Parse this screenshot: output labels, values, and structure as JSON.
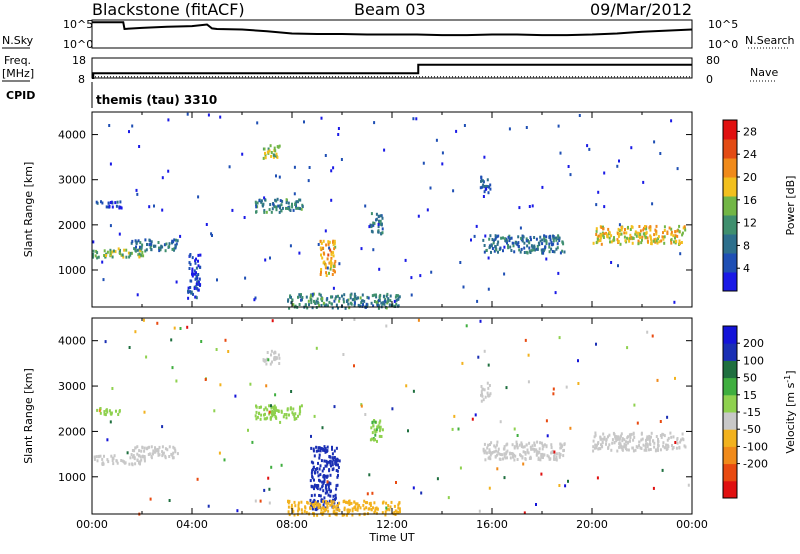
{
  "header": {
    "site": "Blackstone (fitACF)",
    "beam": "Beam 03",
    "date": "09/Mar/2012"
  },
  "panels": {
    "nsky_label": "N.Sky",
    "nsearch_label": "N.Search",
    "noise_ticks_left": [
      "10^5",
      "10^0"
    ],
    "noise_ticks_right": [
      "10^5",
      "10^0"
    ],
    "freq_label": "Freq.",
    "freq_unit": "[MHz]",
    "freq_ticks": [
      "18",
      "8"
    ],
    "nave_label": "Nave",
    "nave_ticks": [
      "80",
      "0"
    ],
    "cpid_label": "CPID",
    "cpid_value": "themis (tau) 3310"
  },
  "colors": {
    "power_scale": [
      "#1a1ae6",
      "#1f4fb4",
      "#2d6f8c",
      "#3f8f6e",
      "#72b646",
      "#f2c01e",
      "#f08a1a",
      "#e34b14",
      "#e01010"
    ],
    "velocity_scale": [
      "#e01010",
      "#e84a10",
      "#f08a1a",
      "#f2b21e",
      "#c8c8c8",
      "#8fd14f",
      "#3fae3f",
      "#1f6f3f",
      "#1a2fb4",
      "#1414d8"
    ]
  },
  "chart_data": [
    {
      "type": "line",
      "title": "",
      "series": [
        {
          "name": "N.Sky",
          "x": [
            0,
            0.2,
            1.25,
            1.3,
            2,
            3,
            4,
            4.6,
            4.8,
            5,
            6,
            7,
            8,
            9,
            10,
            11,
            12,
            13,
            14,
            15,
            16,
            17,
            18,
            19,
            20,
            21,
            22,
            23,
            24
          ],
          "y": [
            4.6,
            4.6,
            4.6,
            3.4,
            3.6,
            3.8,
            3.9,
            4.2,
            3.5,
            3.4,
            3.3,
            3.0,
            2.6,
            2.5,
            2.5,
            2.4,
            2.4,
            2.4,
            2.3,
            2.3,
            2.4,
            2.4,
            2.3,
            2.3,
            2.4,
            2.6,
            2.9,
            3.1,
            3.3
          ]
        },
        {
          "name": "N.Search",
          "x": [
            0,
            24
          ],
          "y": [
            0,
            0
          ]
        }
      ],
      "yticks_left": [
        "10^5",
        "10^0"
      ],
      "yticks_right": [
        "10^5",
        "10^0"
      ]
    },
    {
      "type": "line",
      "series": [
        {
          "name": "Freq.",
          "x": [
            0,
            0.05,
            0.05,
            13.05,
            13.05,
            24
          ],
          "y": [
            8,
            8,
            10.4,
            10.4,
            14.6,
            14.6
          ]
        },
        {
          "name": "Nave",
          "x": [
            0,
            24
          ],
          "y": [
            5,
            5
          ]
        }
      ],
      "ylim_left": [
        8,
        18
      ],
      "ylim_right": [
        0,
        80
      ]
    },
    {
      "type": "heatmap",
      "ylabel": "Slant Range [km]",
      "xlim": [
        0,
        24
      ],
      "ylim": [
        180,
        4500
      ],
      "yticks": [
        1000,
        2000,
        3000,
        4000
      ],
      "colorbar": {
        "label": "Power [dB]",
        "ticks": [
          4,
          8,
          12,
          16,
          20,
          24,
          28
        ],
        "range": [
          0,
          30
        ]
      },
      "echo_regions": [
        {
          "t0": 0.0,
          "t1": 2.1,
          "r0": 1300,
          "r1": 1500,
          "v": 14
        },
        {
          "t0": 1.5,
          "t1": 3.4,
          "r0": 1450,
          "r1": 1700,
          "v": 8
        },
        {
          "t0": 0.1,
          "t1": 1.2,
          "r0": 2400,
          "r1": 2550,
          "v": 4
        },
        {
          "t0": 3.8,
          "t1": 4.3,
          "r0": 400,
          "r1": 1400,
          "v": 4
        },
        {
          "t0": 6.8,
          "t1": 7.5,
          "r0": 3500,
          "r1": 3800,
          "v": 16
        },
        {
          "t0": 6.5,
          "t1": 8.4,
          "r0": 2300,
          "r1": 2600,
          "v": 10
        },
        {
          "t0": 9.1,
          "t1": 9.7,
          "r0": 900,
          "r1": 1700,
          "v": 20
        },
        {
          "t0": 7.8,
          "t1": 12.3,
          "r0": 180,
          "r1": 500,
          "v": 10
        },
        {
          "t0": 11.1,
          "t1": 11.6,
          "r0": 1800,
          "r1": 2300,
          "v": 8
        },
        {
          "t0": 15.6,
          "t1": 18.9,
          "r0": 1400,
          "r1": 1800,
          "v": 8
        },
        {
          "t0": 15.5,
          "t1": 15.9,
          "r0": 2700,
          "r1": 3100,
          "v": 6
        },
        {
          "t0": 20.0,
          "t1": 23.7,
          "r0": 1600,
          "r1": 2000,
          "v": 18
        }
      ]
    },
    {
      "type": "heatmap",
      "ylabel": "Slant Range [km]",
      "xlabel": "Time UT",
      "xticks": [
        "00:00",
        "04:00",
        "08:00",
        "12:00",
        "16:00",
        "20:00",
        "00:00"
      ],
      "xlim": [
        0,
        24
      ],
      "ylim": [
        180,
        4500
      ],
      "yticks": [
        1000,
        2000,
        3000,
        4000
      ],
      "colorbar": {
        "label": "Velocity [m s^-1]",
        "ticks": [
          200,
          100,
          50,
          15,
          -15,
          -50,
          -100,
          -200
        ]
      },
      "echo_regions": [
        {
          "t0": 0.0,
          "t1": 2.1,
          "r0": 1300,
          "r1": 1500,
          "v": 0
        },
        {
          "t0": 1.5,
          "t1": 3.4,
          "r0": 1450,
          "r1": 1700,
          "v": 0
        },
        {
          "t0": 0.1,
          "t1": 1.2,
          "r0": 2400,
          "r1": 2550,
          "v": 30
        },
        {
          "t0": 4.1,
          "t1": 4.2,
          "r0": 900,
          "r1": 1000,
          "v": -200
        },
        {
          "t0": 6.8,
          "t1": 7.5,
          "r0": 3500,
          "r1": 3800,
          "v": 0
        },
        {
          "t0": 6.5,
          "t1": 8.4,
          "r0": 2300,
          "r1": 2600,
          "v": 30
        },
        {
          "t0": 8.7,
          "t1": 9.8,
          "r0": 300,
          "r1": 1700,
          "v": 220
        },
        {
          "t0": 7.8,
          "t1": 12.3,
          "r0": 180,
          "r1": 500,
          "v": -30
        },
        {
          "t0": 11.1,
          "t1": 11.6,
          "r0": 1800,
          "r1": 2300,
          "v": 40
        },
        {
          "t0": 15.6,
          "t1": 18.9,
          "r0": 1400,
          "r1": 1800,
          "v": 0
        },
        {
          "t0": 15.5,
          "t1": 15.9,
          "r0": 2700,
          "r1": 3100,
          "v": 0
        },
        {
          "t0": 20.0,
          "t1": 23.7,
          "r0": 1600,
          "r1": 2000,
          "v": 0
        }
      ]
    }
  ]
}
